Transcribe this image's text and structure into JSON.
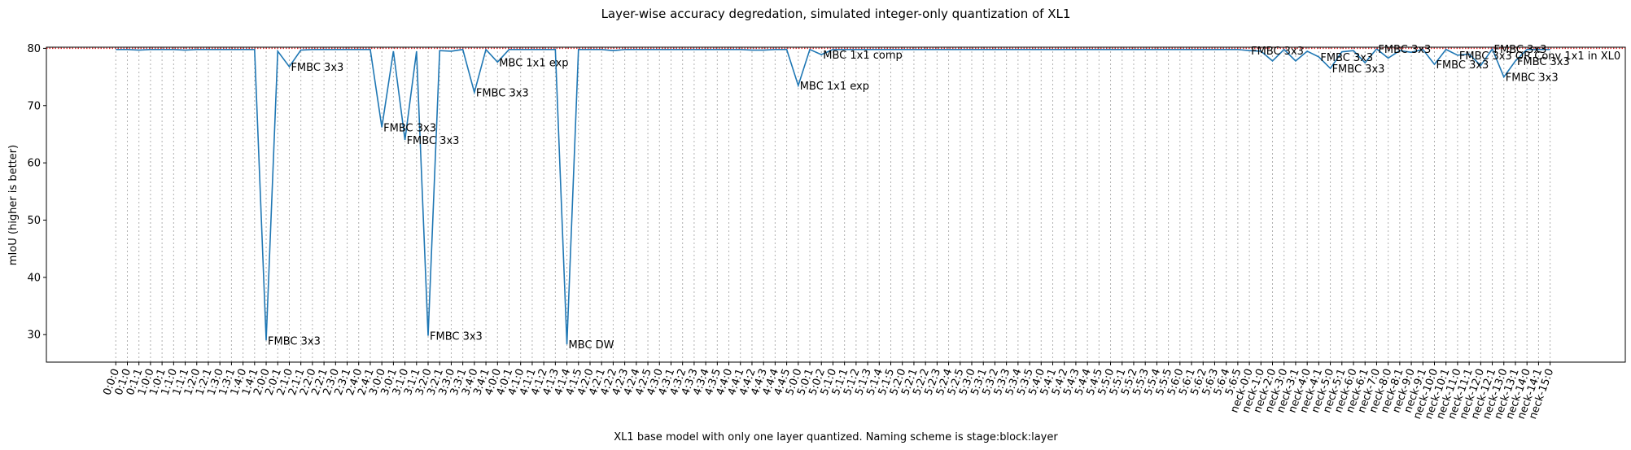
{
  "chart_data": {
    "type": "line",
    "title": "Layer-wise accuracy degredation, simulated integer-only quantization of XL1",
    "xlabel": "XL1 base model with only one layer quantized. Naming scheme is stage:block:layer",
    "ylabel": "mIoU (higher is better)",
    "categories": [
      "0:0:0",
      "0:1:0",
      "0:1:1",
      "1:0:0",
      "1:0:1",
      "1:1:0",
      "1:1:1",
      "1:2:0",
      "1:2:1",
      "1:3:0",
      "1:3:1",
      "1:4:0",
      "1:4:1",
      "2:0:0",
      "2:0:1",
      "2:1:0",
      "2:1:1",
      "2:2:0",
      "2:2:1",
      "2:3:0",
      "2:3:1",
      "2:4:0",
      "2:4:1",
      "3:0:0",
      "3:0:1",
      "3:1:0",
      "3:1:1",
      "3:2:0",
      "3:2:1",
      "3:3:0",
      "3:3:1",
      "3:4:0",
      "3:4:1",
      "4:0:0",
      "4:0:1",
      "4:1:0",
      "4:1:1",
      "4:1:2",
      "4:1:3",
      "4:1:4",
      "4:1:5",
      "4:2:0",
      "4:2:1",
      "4:2:2",
      "4:2:3",
      "4:2:4",
      "4:2:5",
      "4:3:0",
      "4:3:1",
      "4:3:2",
      "4:3:3",
      "4:3:4",
      "4:3:5",
      "4:4:0",
      "4:4:1",
      "4:4:2",
      "4:4:3",
      "4:4:4",
      "4:4:5",
      "5:0:0",
      "5:0:1",
      "5:0:2",
      "5:1:0",
      "5:1:1",
      "5:1:2",
      "5:1:3",
      "5:1:4",
      "5:1:5",
      "5:2:0",
      "5:2:1",
      "5:2:2",
      "5:2:3",
      "5:2:4",
      "5:2:5",
      "5:3:0",
      "5:3:1",
      "5:3:2",
      "5:3:3",
      "5:3:4",
      "5:3:5",
      "5:4:0",
      "5:4:1",
      "5:4:2",
      "5:4:3",
      "5:4:4",
      "5:4:5",
      "5:5:0",
      "5:5:1",
      "5:5:2",
      "5:5:3",
      "5:5:4",
      "5:5:5",
      "5:6:0",
      "5:6:1",
      "5:6:2",
      "5:6:3",
      "5:6:4",
      "5:6:5",
      "neck-0:0",
      "neck-1:0",
      "neck-2:0",
      "neck-3:0",
      "neck-3:1",
      "neck-4:0",
      "neck-4:1",
      "neck-5:0",
      "neck-5:1",
      "neck-6:0",
      "neck-6:1",
      "neck-7:0",
      "neck-8:0",
      "neck-8:1",
      "neck-9:0",
      "neck-9:1",
      "neck-10:0",
      "neck-10:1",
      "neck-11:0",
      "neck-11:1",
      "neck-12:0",
      "neck-12:1",
      "neck-13:0",
      "neck-13:1",
      "neck-14:0",
      "neck-14:1",
      "neck-15:0"
    ],
    "values": [
      79.8,
      79.8,
      79.7,
      79.8,
      79.8,
      79.8,
      79.7,
      79.8,
      79.8,
      79.8,
      79.8,
      79.8,
      79.8,
      29.0,
      79.5,
      76.8,
      79.7,
      79.8,
      79.8,
      79.8,
      79.8,
      79.8,
      79.8,
      66.2,
      79.5,
      64.0,
      79.5,
      29.8,
      79.6,
      79.5,
      79.8,
      72.3,
      79.8,
      77.6,
      79.8,
      79.8,
      79.8,
      79.8,
      79.8,
      28.3,
      79.8,
      79.8,
      79.8,
      79.6,
      79.8,
      79.8,
      79.8,
      79.8,
      79.8,
      79.8,
      79.8,
      79.8,
      79.8,
      79.8,
      79.8,
      79.7,
      79.7,
      79.8,
      79.8,
      73.5,
      79.8,
      78.9,
      79.8,
      79.8,
      79.8,
      79.8,
      79.8,
      79.8,
      79.8,
      79.8,
      79.8,
      79.8,
      79.8,
      79.8,
      79.8,
      79.8,
      79.8,
      79.8,
      79.8,
      79.8,
      79.8,
      79.8,
      79.8,
      79.8,
      79.8,
      79.8,
      79.8,
      79.8,
      79.8,
      79.8,
      79.8,
      79.8,
      79.8,
      79.8,
      79.8,
      79.8,
      79.8,
      79.8,
      79.6,
      79.5,
      77.8,
      79.8,
      77.8,
      79.5,
      78.5,
      76.5,
      79.4,
      79.6,
      77.5,
      79.9,
      78.3,
      79.6,
      79.3,
      79.8,
      77.2,
      79.8,
      78.8,
      79.0,
      77.0,
      79.9,
      75.0,
      77.8,
      79.8,
      79.8,
      79.8
    ],
    "color": "#1f77b4",
    "baseline": 80,
    "baseline_color": "#d62728",
    "xlim": [
      -6,
      130.5
    ],
    "ylim": [
      25.2,
      80.2
    ],
    "yticks": [
      30,
      40,
      50,
      60,
      70,
      80
    ],
    "grid": true,
    "annotations": [
      {
        "x": "2:0:0",
        "text": "FMBC 3x3"
      },
      {
        "x": "2:1:0",
        "text": "FMBC 3x3"
      },
      {
        "x": "3:0:0",
        "text": "FMBC 3x3"
      },
      {
        "x": "3:1:0",
        "text": "FMBC 3x3"
      },
      {
        "x": "3:2:0",
        "text": "FMBC 3x3"
      },
      {
        "x": "3:4:0",
        "text": "FMBC 3x3"
      },
      {
        "x": "4:0:0",
        "text": "MBC 1x1 exp"
      },
      {
        "x": "4:1:4",
        "text": "MBC DW"
      },
      {
        "x": "5:0:0",
        "text": "MBC 1x1 exp"
      },
      {
        "x": "5:0:2",
        "text": "MBC 1x1 comp"
      },
      {
        "x": "neck-0:0",
        "text": "FMBC 3x3"
      },
      {
        "x": "neck-4:1",
        "text": "FMBC 3x3"
      },
      {
        "x": "neck-5:0",
        "text": "FMBC 3x3"
      },
      {
        "x": "neck-7:0",
        "text": "FMBC 3x3"
      },
      {
        "x": "neck-10:0",
        "text": "FMBC 3x3"
      },
      {
        "x": "neck-11:0",
        "text": "FMBC 3x3 OR Conv 1x1 in XL0"
      },
      {
        "x": "neck-12:1",
        "text": "FMBC 3x3"
      },
      {
        "x": "neck-13:0",
        "text": "FMBC 3x3"
      },
      {
        "x": "neck-13:1",
        "text": "FMBC 3x3"
      }
    ]
  }
}
